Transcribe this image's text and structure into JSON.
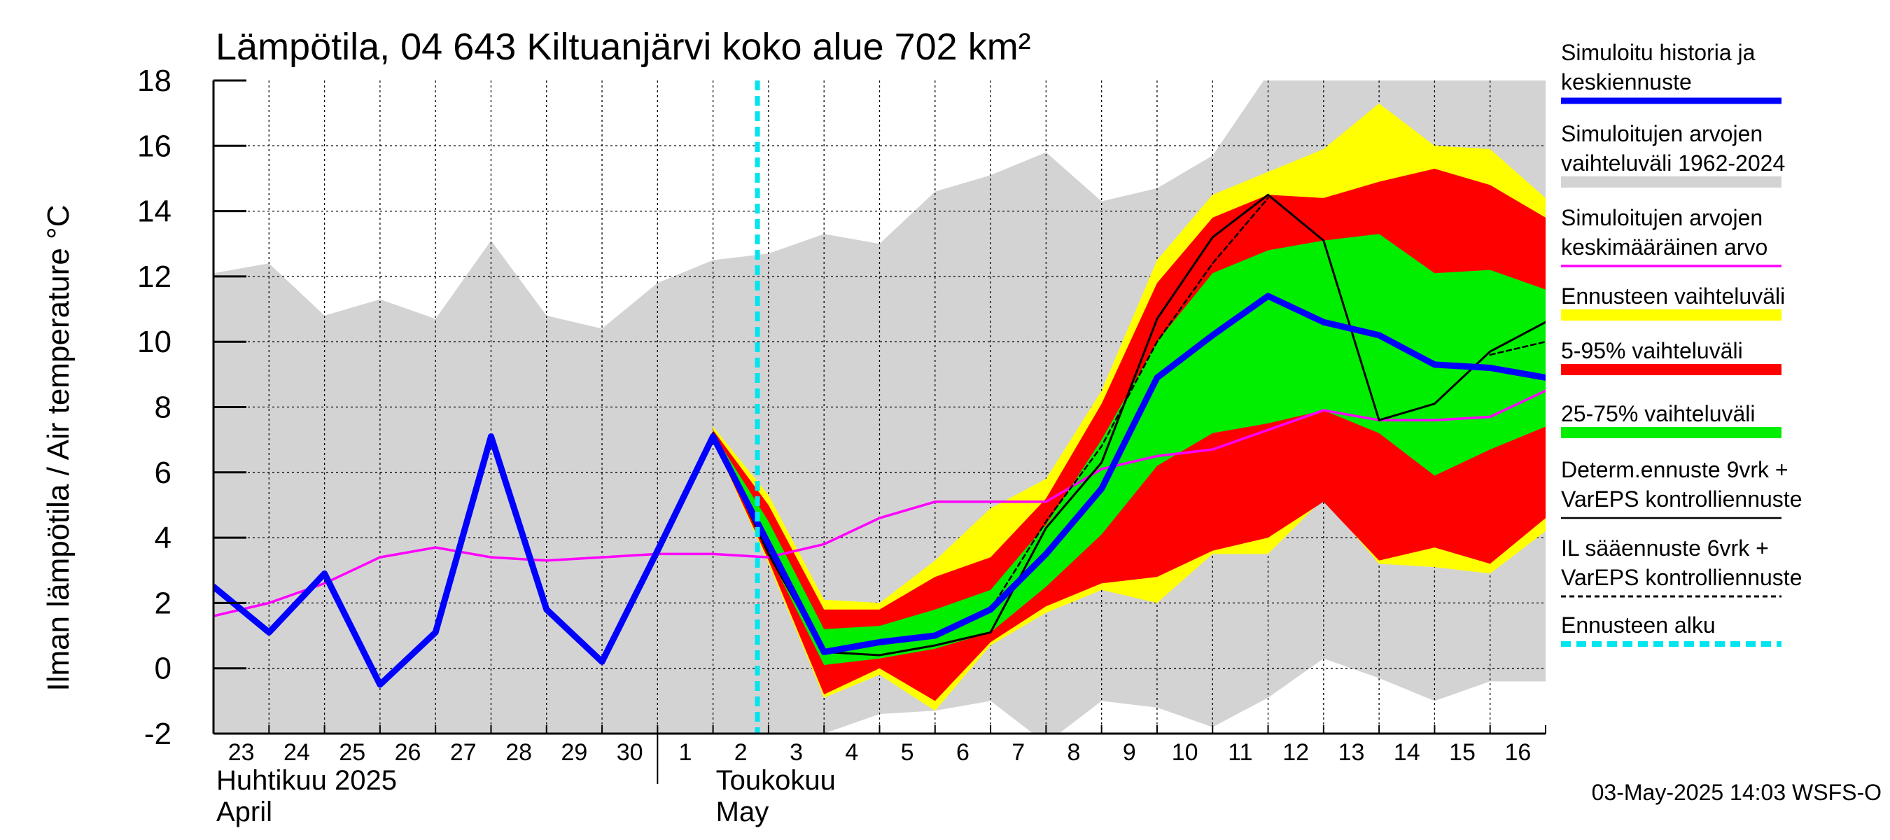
{
  "chart_data": {
    "type": "area",
    "title": "Lämpötila, 04 643 Kiltuanjärvi koko alue 702 km²",
    "ylabel": "Ilman lämpötila / Air temperature    °C",
    "ylim": [
      -2,
      18
    ],
    "yticks": [
      -2,
      0,
      2,
      4,
      6,
      8,
      10,
      12,
      14,
      16,
      18
    ],
    "x_days": [
      "23",
      "24",
      "25",
      "26",
      "27",
      "28",
      "29",
      "30",
      "1",
      "2",
      "3",
      "4",
      "5",
      "6",
      "7",
      "8",
      "9",
      "10",
      "11",
      "12",
      "13",
      "14",
      "15",
      "16"
    ],
    "month_labels": [
      {
        "line1": "Huhtikuu  2025",
        "line2": "April",
        "at_day": "23"
      },
      {
        "line1": "Toukokuu",
        "line2": "May",
        "at_day": "2"
      }
    ],
    "forecast_start_day": "3",
    "grid": true,
    "series": {
      "hist_range": {
        "name": "Simuloitujen arvojen vaihteluväli 1962-2024",
        "color": "#d3d3d3",
        "upper": [
          12.1,
          12.4,
          10.8,
          11.3,
          10.7,
          13.1,
          10.8,
          10.4,
          11.8,
          12.5,
          12.7,
          13.3,
          13.0,
          14.6,
          15.1,
          15.8,
          14.3,
          14.7,
          15.7,
          18.2,
          18.5,
          18.5,
          18.5,
          18.5,
          18.5
        ],
        "lower": [
          -2.5,
          -2.5,
          -2.5,
          -2.5,
          -2.5,
          -2.5,
          -2.5,
          -2.5,
          -2.5,
          -2.5,
          -2.5,
          -2.0,
          -1.4,
          -1.3,
          -1.0,
          -2.3,
          -1.0,
          -1.2,
          -1.8,
          -0.9,
          0.3,
          -0.3,
          -1.0,
          -0.4,
          -0.4
        ]
      },
      "forecast_range": {
        "name": "Ennusteen vaihteluväli",
        "color": "#ffff00",
        "upper": [
          null,
          null,
          null,
          null,
          null,
          null,
          null,
          null,
          null,
          7.4,
          5.3,
          2.1,
          2.0,
          3.3,
          4.9,
          5.8,
          8.5,
          12.5,
          14.5,
          15.2,
          15.9,
          17.3,
          16.0,
          15.9,
          14.4
        ],
        "lower": [
          null,
          null,
          null,
          null,
          null,
          null,
          null,
          null,
          null,
          7.0,
          3.2,
          -0.9,
          -0.2,
          -1.3,
          0.7,
          1.7,
          2.4,
          2.0,
          3.5,
          3.5,
          5.2,
          3.2,
          3.1,
          2.9,
          4.2
        ]
      },
      "p5_95": {
        "name": "5-95% vaihteluväli",
        "color": "#ff0000",
        "upper": [
          null,
          null,
          null,
          null,
          null,
          null,
          null,
          null,
          null,
          7.3,
          5.0,
          1.8,
          1.8,
          2.8,
          3.4,
          5.2,
          8.1,
          11.8,
          13.8,
          14.5,
          14.4,
          14.9,
          15.3,
          14.8,
          13.8
        ],
        "lower": [
          null,
          null,
          null,
          null,
          null,
          null,
          null,
          null,
          null,
          7.0,
          3.3,
          -0.8,
          0.0,
          -1.0,
          0.8,
          1.9,
          2.6,
          2.8,
          3.6,
          4.0,
          5.1,
          3.3,
          3.7,
          3.2,
          4.6
        ]
      },
      "p25_75": {
        "name": "25-75% vaihteluväli",
        "color": "#00ee00",
        "upper": [
          null,
          null,
          null,
          null,
          null,
          null,
          null,
          null,
          null,
          7.2,
          4.5,
          1.2,
          1.3,
          1.8,
          2.4,
          4.4,
          7.0,
          10.0,
          12.1,
          12.8,
          13.1,
          13.3,
          12.1,
          12.2,
          11.6
        ],
        "lower": [
          null,
          null,
          null,
          null,
          null,
          null,
          null,
          null,
          null,
          7.1,
          3.5,
          0.1,
          0.3,
          0.6,
          1.1,
          2.5,
          4.1,
          6.2,
          7.2,
          7.5,
          7.9,
          7.2,
          5.9,
          6.7,
          7.4
        ]
      },
      "history_mean": {
        "name": "Simuloitu historia ja keskiennuste",
        "color": "#0000ff",
        "values": [
          2.5,
          1.1,
          2.9,
          -0.5,
          1.1,
          7.1,
          1.8,
          0.2,
          3.6,
          7.1,
          3.8,
          0.5,
          0.8,
          1.0,
          1.8,
          3.5,
          5.5,
          8.9,
          10.2,
          11.4,
          10.6,
          10.2,
          9.3,
          9.2,
          8.9
        ]
      },
      "sim_avg": {
        "name": "Simuloitujen arvojen keskimääräinen arvo",
        "color": "#ff00ff",
        "values": [
          1.6,
          2.0,
          2.6,
          3.4,
          3.7,
          3.4,
          3.3,
          3.4,
          3.5,
          3.5,
          3.4,
          3.8,
          4.6,
          5.1,
          5.1,
          5.1,
          6.1,
          6.5,
          6.7,
          7.3,
          7.9,
          7.6,
          7.6,
          7.7,
          8.5
        ]
      },
      "determ": {
        "name": "Determ.ennuste 9vrk + VarEPS kontrolliennuste",
        "color": "#000000",
        "values": [
          null,
          null,
          null,
          null,
          null,
          null,
          null,
          null,
          3.6,
          7.2,
          3.5,
          0.5,
          0.4,
          0.7,
          1.1,
          4.3,
          6.3,
          10.7,
          13.2,
          14.5,
          13.1,
          7.6,
          8.1,
          9.7,
          10.6
        ]
      },
      "il_forecast": {
        "name": "IL sääennuste 6vrk + VarEPS kontrolliennuste",
        "color": "#000000",
        "values": [
          null,
          null,
          null,
          null,
          null,
          null,
          null,
          null,
          null,
          7.2,
          3.6,
          0.5,
          0.8,
          1.0,
          1.8,
          4.5,
          6.8,
          10.0,
          12.4,
          14.4,
          null,
          null,
          null,
          9.6,
          10.0
        ]
      }
    },
    "legend": [
      {
        "id": "history",
        "line1": "Simuloitu historia ja",
        "line2": "keskiennuste",
        "color": "#0000ff",
        "style": "thick"
      },
      {
        "id": "range",
        "line1": "Simuloitujen arvojen",
        "line2": "vaihteluväli 1962-2024",
        "color": "#d3d3d3",
        "style": "band"
      },
      {
        "id": "avg",
        "line1": "Simuloitujen arvojen",
        "line2": "keskimääräinen arvo",
        "color": "#ff00ff",
        "style": "thin"
      },
      {
        "id": "frange",
        "line1": "Ennusteen vaihteluväli",
        "line2": "",
        "color": "#ffff00",
        "style": "band"
      },
      {
        "id": "p595",
        "line1": "5-95% vaihteluväli",
        "line2": "",
        "color": "#ff0000",
        "style": "band"
      },
      {
        "id": "p2575",
        "line1": "25-75% vaihteluväli",
        "line2": "",
        "color": "#00ee00",
        "style": "band"
      },
      {
        "id": "determ",
        "line1": "Determ.ennuste 9vrk +",
        "line2": "VarEPS kontrolliennuste",
        "color": "#000000",
        "style": "solid"
      },
      {
        "id": "il",
        "line1": "IL sääennuste 6vrk  +",
        "line2": "  VarEPS kontrolliennuste",
        "color": "#000000",
        "style": "dashed"
      },
      {
        "id": "fstart",
        "line1": "Ennusteen alku",
        "line2": "",
        "color": "#00e5ee",
        "style": "cyan"
      }
    ],
    "footer": "03-May-2025 14:03 WSFS-O"
  }
}
